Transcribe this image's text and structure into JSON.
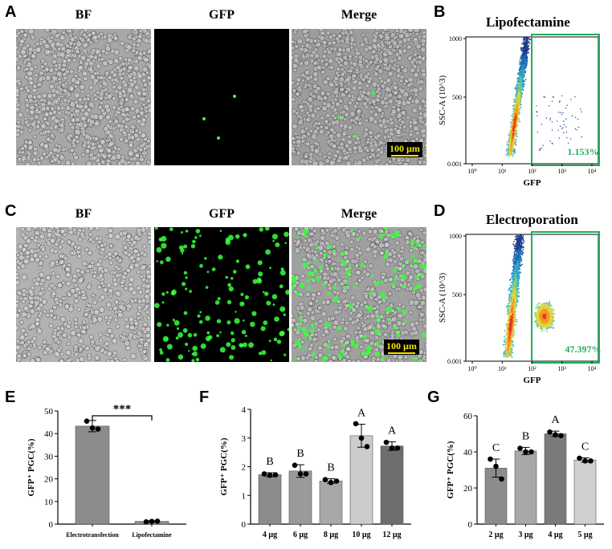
{
  "panels": {
    "A": {
      "letter": "A",
      "titles": [
        "BF",
        "GFP",
        "Merge"
      ],
      "scalebar": "100 µm"
    },
    "B": {
      "letter": "B",
      "title": "Lipofectamine",
      "ylabel": "SSC-A (10^3)",
      "xlabel": "GFP",
      "yticks": [
        "1000",
        "500",
        "0.001"
      ],
      "gate_pct": "1.153%"
    },
    "C": {
      "letter": "C",
      "titles": [
        "BF",
        "GFP",
        "Merge"
      ],
      "scalebar": "100 µm"
    },
    "D": {
      "letter": "D",
      "title": "Electroporation",
      "ylabel": "SSC-A (10^3)",
      "xlabel": "GFP",
      "yticks": [
        "1000",
        "500",
        "0.001"
      ],
      "gate_pct": "47.397%"
    }
  },
  "flow_xticks": [
    "10⁰",
    "10¹",
    "10²",
    "10³",
    "10⁴"
  ],
  "chart_data": [
    {
      "id": "E",
      "type": "bar",
      "letter": "E",
      "ylabel": "GFP⁺ PGC(%)",
      "categories": [
        "Electrotransfection",
        "Lipofectamine"
      ],
      "values": [
        43.3,
        1.2
      ],
      "errors": [
        2.5,
        0.3
      ],
      "points": [
        [
          45.5,
          42.5,
          42.0
        ],
        [
          1.0,
          1.2,
          1.3
        ]
      ],
      "ylim": [
        0,
        50
      ],
      "yticks": [
        "0",
        "10",
        "20",
        "30",
        "40",
        "50"
      ],
      "colors": [
        "#8c8c8c",
        "#8c8c8c"
      ],
      "significance": "***"
    },
    {
      "id": "F",
      "type": "bar",
      "letter": "F",
      "ylabel": "GFP⁺ PGC(%)",
      "categories": [
        "4 µg",
        "6 µg",
        "8 µg",
        "10 µg",
        "12 µg"
      ],
      "values": [
        1.72,
        1.85,
        1.5,
        3.08,
        2.72
      ],
      "errors": [
        0.07,
        0.22,
        0.08,
        0.4,
        0.15
      ],
      "points": [
        [
          1.75,
          1.7,
          1.72
        ],
        [
          2.05,
          1.75,
          1.75
        ],
        [
          1.55,
          1.45,
          1.5
        ],
        [
          3.5,
          3.0,
          2.7
        ],
        [
          2.85,
          2.65,
          2.65
        ]
      ],
      "ylim": [
        0,
        4
      ],
      "yticks": [
        "0",
        "1",
        "2",
        "3",
        "4"
      ],
      "colors": [
        "#8c8c8c",
        "#9a9a9a",
        "#a8a8a8",
        "#cccccc",
        "#6e6e6e"
      ],
      "letters": [
        "B",
        "B",
        "B",
        "A",
        "A"
      ]
    },
    {
      "id": "G",
      "type": "bar",
      "letter": "G",
      "ylabel": "GFP⁺ PGC(%)",
      "categories": [
        "2 µg",
        "3 µg",
        "4 µg",
        "5 µg"
      ],
      "values": [
        31.0,
        40.5,
        50.0,
        35.5
      ],
      "errors": [
        5.0,
        2.0,
        1.5,
        1.2
      ],
      "points": [
        [
          36.0,
          32.0,
          25.0
        ],
        [
          42.0,
          40.0,
          40.0
        ],
        [
          51.0,
          49.5,
          49.0
        ],
        [
          36.5,
          35.0,
          35.0
        ]
      ],
      "ylim": [
        0,
        60
      ],
      "yticks": [
        "0",
        "20",
        "40",
        "60"
      ],
      "colors": [
        "#8c8c8c",
        "#a8a8a8",
        "#7a7a7a",
        "#d0d0d0"
      ],
      "letters": [
        "C",
        "B",
        "A",
        "C"
      ]
    }
  ]
}
